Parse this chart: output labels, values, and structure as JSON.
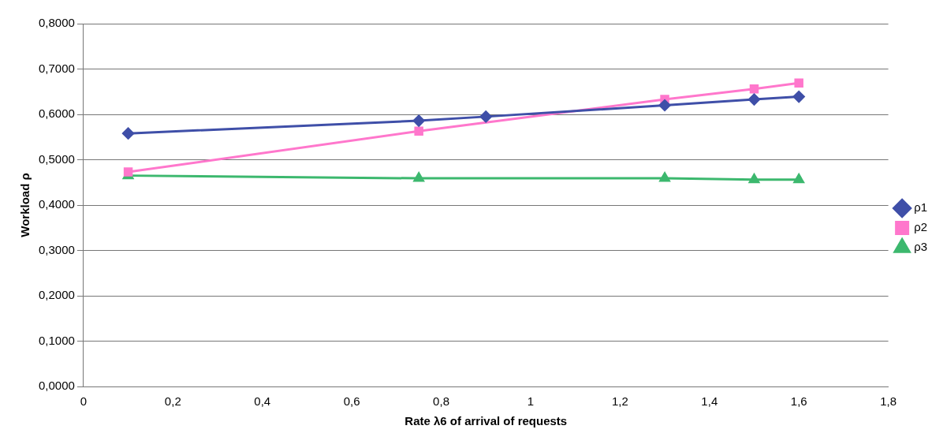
{
  "chart_data": {
    "type": "line",
    "xlabel": "Rate λ6 of arrival of requests",
    "ylabel": "Workload ρ",
    "xlim": [
      0,
      1.8
    ],
    "xticks": [
      0,
      {
        "value": 0.2,
        "label": "0,2"
      },
      {
        "value": 0.4,
        "label": "0,4"
      },
      {
        "value": 0.6,
        "label": "0,6"
      },
      {
        "value": 0.8,
        "label": "0,8"
      },
      1,
      {
        "value": 1.2,
        "label": "1,2"
      },
      {
        "value": 1.4,
        "label": "1,4"
      },
      {
        "value": 1.6,
        "label": "1,6"
      },
      {
        "value": 1.8,
        "label": "1,8"
      }
    ],
    "ylim": [
      0,
      0.8
    ],
    "yticks": [
      {
        "value": 0,
        "label": "0,0000"
      },
      {
        "value": 0.1,
        "label": "0,1000"
      },
      {
        "value": 0.2,
        "label": "0,2000"
      },
      {
        "value": 0.3,
        "label": "0,3000"
      },
      {
        "value": 0.4,
        "label": "0,4000"
      },
      {
        "value": 0.5,
        "label": "0,5000"
      },
      {
        "value": 0.6,
        "label": "0,6000"
      },
      {
        "value": 0.7,
        "label": "0,7000"
      },
      {
        "value": 0.8,
        "label": "0,8000"
      }
    ],
    "grid": "y",
    "legend": "right",
    "series": [
      {
        "name": "ρ1",
        "color": "#3f4fa8",
        "marker": "diamond",
        "x": [
          0.1,
          0.75,
          0.9,
          1.3,
          1.5,
          1.6
        ],
        "values": [
          0.558,
          0.586,
          0.595,
          0.62,
          0.633,
          0.639
        ]
      },
      {
        "name": "ρ2",
        "color": "#ff77cc",
        "marker": "square",
        "x": [
          0.1,
          0.75,
          1.3,
          1.5,
          1.6
        ],
        "values": [
          0.473,
          0.563,
          0.633,
          0.656,
          0.669
        ]
      },
      {
        "name": "ρ3",
        "color": "#3cb86e",
        "marker": "triangle",
        "x": [
          0.1,
          0.75,
          1.3,
          1.5,
          1.6
        ],
        "values": [
          0.465,
          0.459,
          0.459,
          0.456,
          0.456
        ]
      }
    ]
  }
}
